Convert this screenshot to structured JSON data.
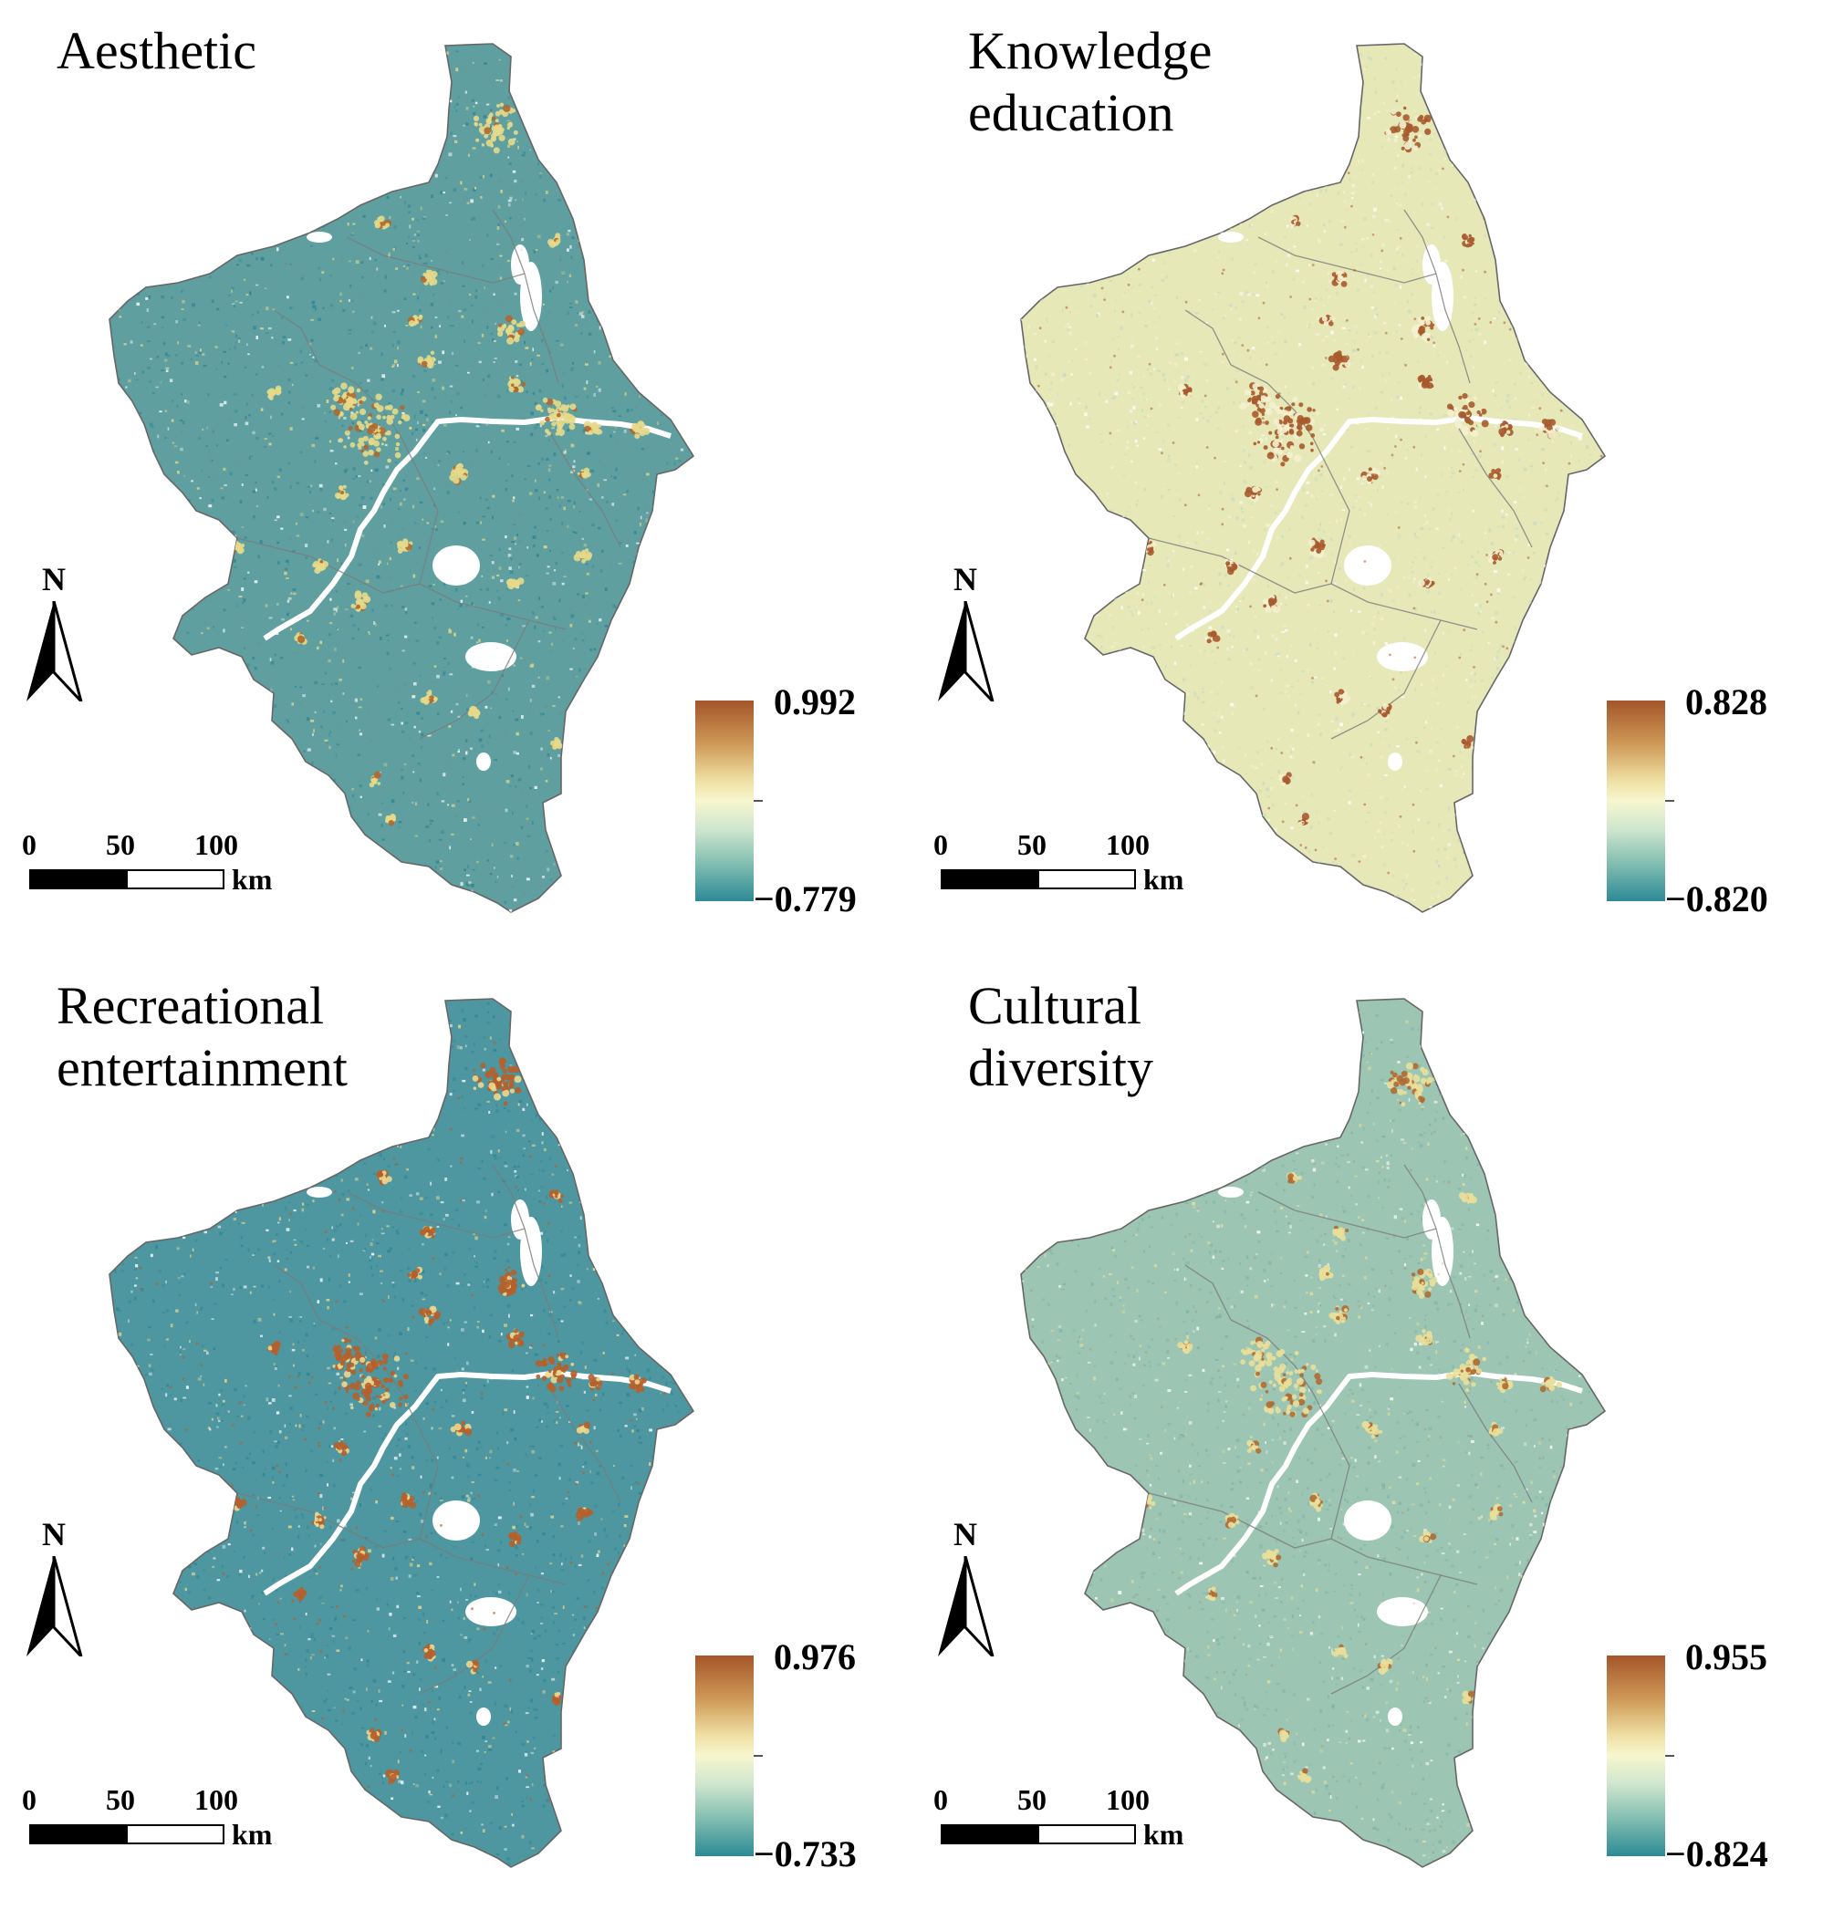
{
  "north_label": "N",
  "scale": {
    "ticks": [
      "0",
      "50",
      "100"
    ],
    "unit": "km"
  },
  "legend_colors": [
    "#a5552a",
    "#cf9a58",
    "#efe0a4",
    "#f7f6cf",
    "#cfe6ce",
    "#7fbcb0",
    "#2c8a96"
  ],
  "panels": [
    {
      "title_line1": "Aesthetic",
      "title_line2": "",
      "max": "0.992",
      "min": "−0.779",
      "base_color": "#5f9fa0",
      "speckle_color": "#2f8393",
      "highlight_color": "#e6d98a",
      "hotspot_color": "#b0672f",
      "hotspot_level": 0.15
    },
    {
      "title_line1": "Knowledge",
      "title_line2": "education",
      "max": "0.828",
      "min": "−0.820",
      "base_color": "#e6e8b8",
      "speckle_color": "#c7dcc0",
      "highlight_color": "#f5f1cf",
      "hotspot_color": "#a75a2c",
      "hotspot_level": 0.6
    },
    {
      "title_line1": "Recreational",
      "title_line2": "entertainment",
      "max": "0.976",
      "min": "−0.733",
      "base_color": "#4e97a0",
      "speckle_color": "#2d8594",
      "highlight_color": "#ecd78f",
      "hotspot_color": "#b4602c",
      "hotspot_level": 0.75
    },
    {
      "title_line1": "Cultural",
      "title_line2": "diversity",
      "max": "0.955",
      "min": "−0.824",
      "base_color": "#9cc5b3",
      "speckle_color": "#7fb3a8",
      "highlight_color": "#e9df9a",
      "hotspot_color": "#b06a32",
      "hotspot_level": 0.25
    }
  ]
}
